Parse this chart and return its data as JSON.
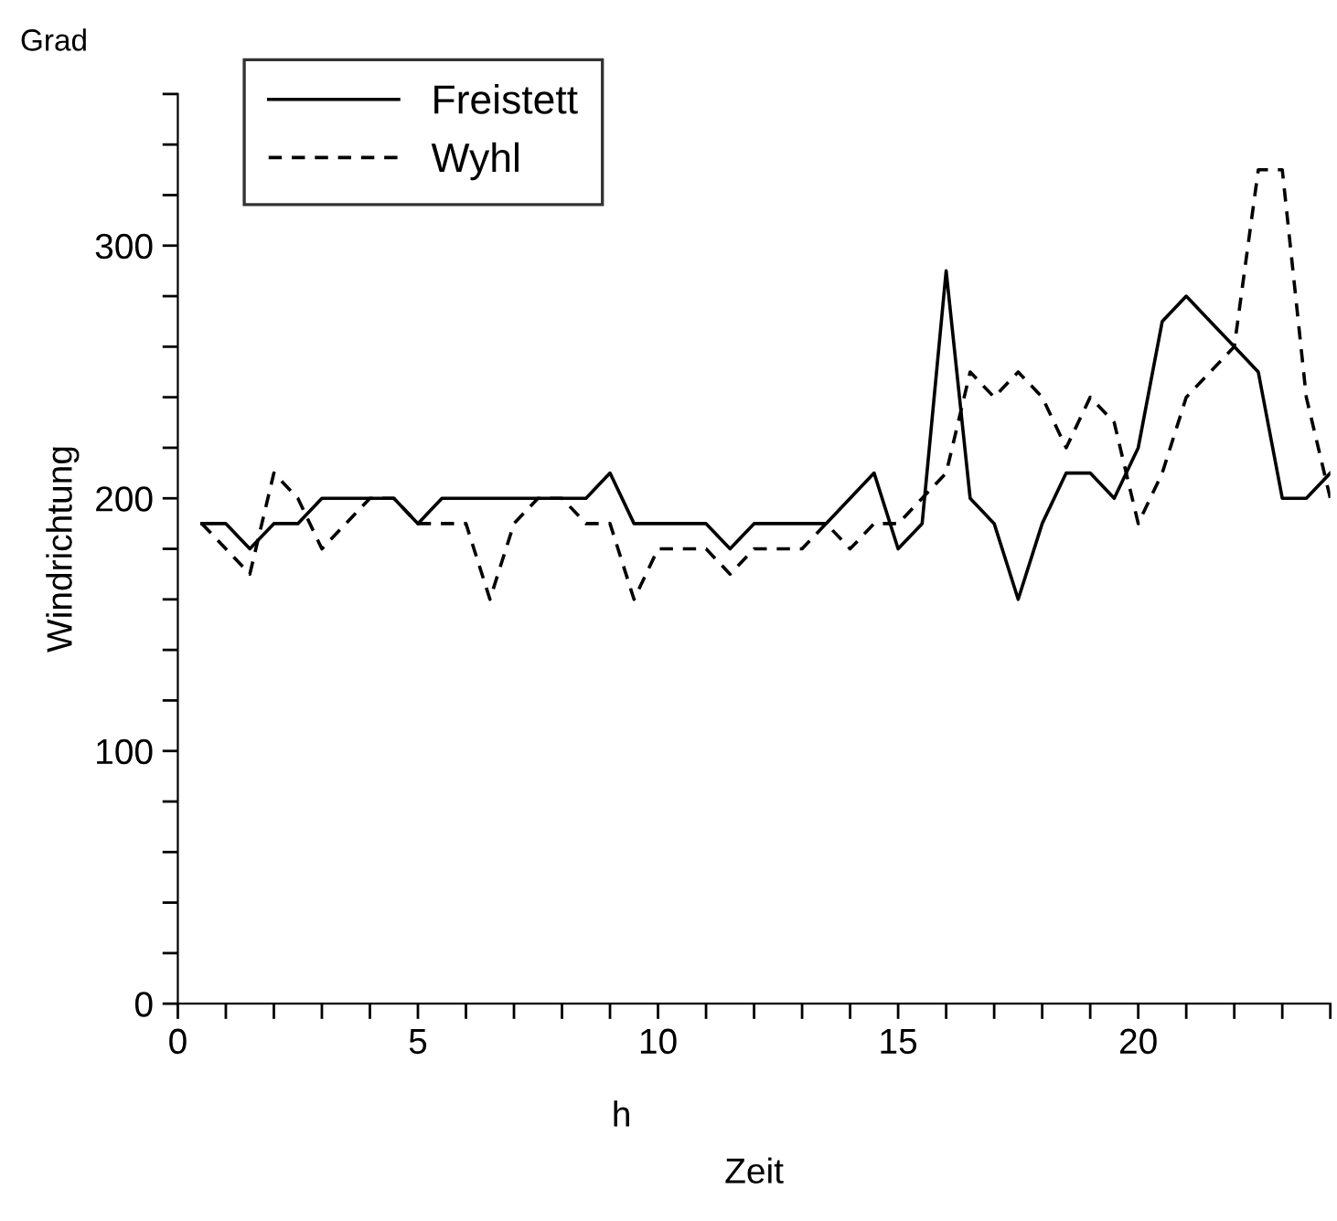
{
  "chart_data": {
    "type": "line",
    "xlabel": "Zeit",
    "ylabel": "Windrichtung",
    "annotations": [
      "Grad",
      "h"
    ],
    "x": [
      0.5,
      1,
      1.5,
      2,
      2.5,
      3,
      3.5,
      4,
      4.5,
      5,
      5.5,
      6,
      6.5,
      7,
      7.5,
      8,
      8.5,
      9,
      9.5,
      10,
      10.5,
      11,
      11.5,
      12,
      12.5,
      13,
      13.5,
      14,
      14.5,
      15,
      15.5,
      16,
      16.5,
      17,
      17.5,
      18,
      18.5,
      19,
      19.5,
      20,
      20.5,
      21,
      21.5,
      22,
      22.5,
      23,
      23.5,
      24
    ],
    "series": [
      {
        "name": "Freistett",
        "color": "#000000",
        "line_style": "solid",
        "values": [
          190,
          190,
          180,
          190,
          190,
          200,
          200,
          200,
          200,
          190,
          200,
          200,
          200,
          200,
          200,
          200,
          200,
          210,
          190,
          190,
          190,
          190,
          180,
          190,
          190,
          190,
          190,
          200,
          210,
          180,
          190,
          290,
          200,
          190,
          160,
          190,
          210,
          210,
          200,
          220,
          270,
          280,
          270,
          260,
          250,
          200,
          200,
          210
        ]
      },
      {
        "name": "Wyhl",
        "color": "#000000",
        "line_style": "dashed",
        "values": [
          190,
          180,
          170,
          210,
          200,
          180,
          190,
          200,
          200,
          190,
          190,
          190,
          160,
          190,
          200,
          200,
          190,
          190,
          160,
          180,
          180,
          180,
          170,
          180,
          180,
          180,
          190,
          180,
          190,
          190,
          200,
          210,
          250,
          240,
          250,
          240,
          220,
          240,
          230,
          190,
          210,
          240,
          250,
          260,
          330,
          330,
          240,
          200
        ]
      }
    ],
    "xlim": [
      0,
      24
    ],
    "xticks": [
      0,
      {
        "value": 1,
        "label": null
      },
      {
        "value": 2,
        "label": null
      },
      {
        "value": 3,
        "label": null
      },
      {
        "value": 4,
        "label": null
      },
      5,
      {
        "value": 6,
        "label": null
      },
      {
        "value": 7,
        "label": null
      },
      {
        "value": 8,
        "label": null
      },
      {
        "value": 9,
        "label": null
      },
      10,
      {
        "value": 11,
        "label": null
      },
      {
        "value": 12,
        "label": null
      },
      {
        "value": 13,
        "label": null
      },
      {
        "value": 14,
        "label": null
      },
      15,
      {
        "value": 16,
        "label": null
      },
      {
        "value": 17,
        "label": null
      },
      {
        "value": 18,
        "label": null
      },
      {
        "value": 19,
        "label": null
      },
      20,
      {
        "value": 21,
        "label": null
      },
      {
        "value": 22,
        "label": null
      },
      {
        "value": 23,
        "label": null
      },
      {
        "value": 24,
        "label": null
      }
    ],
    "ylim": [
      0,
      360
    ],
    "yticks": [
      0,
      {
        "value": 20,
        "label": null
      },
      {
        "value": 40,
        "label": null
      },
      {
        "value": 60,
        "label": null
      },
      {
        "value": 80,
        "label": null
      },
      100,
      {
        "value": 120,
        "label": null
      },
      {
        "value": 140,
        "label": null
      },
      {
        "value": 160,
        "label": null
      },
      {
        "value": 180,
        "label": null
      },
      200,
      {
        "value": 220,
        "label": null
      },
      {
        "value": 240,
        "label": null
      },
      {
        "value": 260,
        "label": null
      },
      {
        "value": 280,
        "label": null
      },
      300,
      {
        "value": 320,
        "label": null
      },
      {
        "value": 340,
        "label": null
      },
      {
        "value": 360,
        "label": null
      }
    ],
    "grid": false,
    "legend": "top left"
  }
}
